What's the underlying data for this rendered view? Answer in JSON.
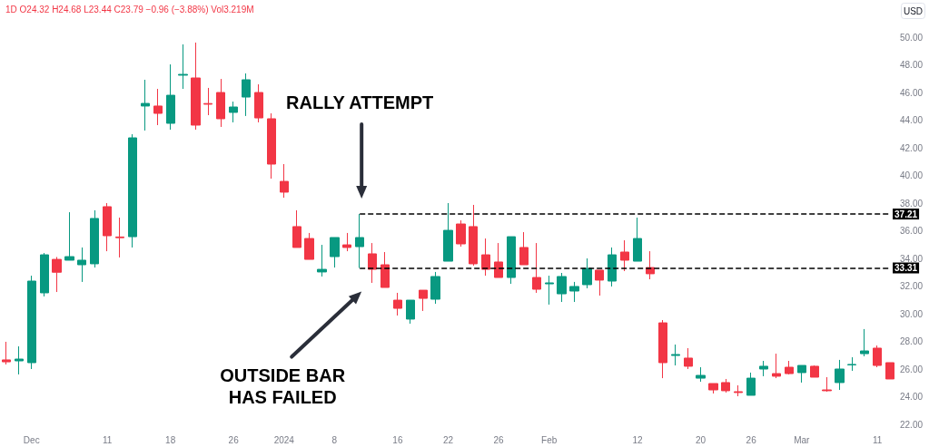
{
  "chart_data": {
    "type": "candlestick",
    "annotations": [
      "1D O24.32 H24.68 L23.44 C23.79 −0.96 (−3.88%) Vol3.219M",
      "RALLY ATTEMPT",
      "OUTSIDE BAR\nHAS FAILED"
    ],
    "ylabel": "USD",
    "categories": [
      null,
      null,
      "Dec",
      null,
      null,
      null,
      null,
      null,
      "11",
      null,
      null,
      null,
      null,
      "18",
      null,
      null,
      null,
      null,
      "26",
      null,
      null,
      null,
      "2024",
      null,
      null,
      null,
      "8",
      null,
      null,
      null,
      null,
      "16",
      null,
      null,
      null,
      "22",
      null,
      null,
      null,
      "26",
      null,
      null,
      null,
      "Feb",
      null,
      null,
      null,
      null,
      null,
      null,
      "12",
      null,
      null,
      null,
      null,
      "20",
      null,
      null,
      null,
      "26",
      null,
      null,
      null,
      "Mar",
      null,
      null,
      null,
      null,
      null,
      "11",
      null
    ],
    "ohlc": [
      [
        26.66,
        27.97,
        26.33,
        26.52
      ],
      [
        26.59,
        27.64,
        25.61,
        26.72
      ],
      [
        26.46,
        32.75,
        26.0,
        32.36
      ],
      [
        31.51,
        34.39,
        31.25,
        34.26
      ],
      [
        33.93,
        34.1,
        31.57,
        33.0
      ],
      [
        33.87,
        37.34,
        33.87,
        34.13
      ],
      [
        33.54,
        34.79,
        32.3,
        33.87
      ],
      [
        33.61,
        37.48,
        33.34,
        36.89
      ],
      [
        37.74,
        38.0,
        34.52,
        35.64
      ],
      [
        35.55,
        36.95,
        34.07,
        35.5
      ],
      [
        35.57,
        42.98,
        34.79,
        42.72
      ],
      [
        45.02,
        46.92,
        43.25,
        45.21
      ],
      [
        45.02,
        46.26,
        43.64,
        44.49
      ],
      [
        43.77,
        48.03,
        43.31,
        45.8
      ],
      [
        47.25,
        49.48,
        46.26,
        47.31
      ],
      [
        47.05,
        49.61,
        43.31,
        43.64
      ],
      [
        45.2,
        46.33,
        44.36,
        45.15
      ],
      [
        46.0,
        46.98,
        43.51,
        44.1
      ],
      [
        44.56,
        45.34,
        43.84,
        44.95
      ],
      [
        45.67,
        47.38,
        44.3,
        46.92
      ],
      [
        46.0,
        46.59,
        43.84,
        44.16
      ],
      [
        44.1,
        44.49,
        39.77,
        40.82
      ],
      [
        39.57,
        40.82,
        38.39,
        38.79
      ],
      [
        36.3,
        37.48,
        34.79,
        34.79
      ],
      [
        35.44,
        35.84,
        33.93,
        33.93
      ],
      [
        33.02,
        34.98,
        32.69,
        33.21
      ],
      [
        34.13,
        35.51,
        33.34,
        35.51
      ],
      [
        34.98,
        35.84,
        34.52,
        34.79
      ],
      [
        34.85,
        37.21,
        33.31,
        35.51
      ],
      [
        34.33,
        35.11,
        32.23,
        33.21
      ],
      [
        33.54,
        34.46,
        31.9,
        31.9
      ],
      [
        30.98,
        31.51,
        29.87,
        30.39
      ],
      [
        29.61,
        30.98,
        29.28,
        30.98
      ],
      [
        31.7,
        31.7,
        30.2,
        31.11
      ],
      [
        31.05,
        33.02,
        30.72,
        32.69
      ],
      [
        33.8,
        38.0,
        33.8,
        36.03
      ],
      [
        36.49,
        36.75,
        34.85,
        35.05
      ],
      [
        36.3,
        37.87,
        33.48,
        33.61
      ],
      [
        34.26,
        35.44,
        32.75,
        33.21
      ],
      [
        33.74,
        35.11,
        32.62,
        32.62
      ],
      [
        32.62,
        35.57,
        32.16,
        35.57
      ],
      [
        34.79,
        35.9,
        33.54,
        33.54
      ],
      [
        32.62,
        35.11,
        31.51,
        31.77
      ],
      [
        32.16,
        32.75,
        30.66,
        32.23
      ],
      [
        31.44,
        32.95,
        30.85,
        32.69
      ],
      [
        31.64,
        32.3,
        30.85,
        31.97
      ],
      [
        32.1,
        34.0,
        31.84,
        33.28
      ],
      [
        33.15,
        33.15,
        31.31,
        32.43
      ],
      [
        32.36,
        34.79,
        31.97,
        34.26
      ],
      [
        34.46,
        35.31,
        33.08,
        33.87
      ],
      [
        33.8,
        36.95,
        33.8,
        35.44
      ],
      [
        33.34,
        34.52,
        32.49,
        32.89
      ],
      [
        29.34,
        29.54,
        25.34,
        26.46
      ],
      [
        26.98,
        27.77,
        26.26,
        27.05
      ],
      [
        26.79,
        27.51,
        26.0,
        26.2
      ],
      [
        25.34,
        26.13,
        25.08,
        25.54
      ],
      [
        24.95,
        24.95,
        24.23,
        24.49
      ],
      [
        25.02,
        25.28,
        24.3,
        24.43
      ],
      [
        24.36,
        24.82,
        24.03,
        24.3
      ],
      [
        24.1,
        25.74,
        24.1,
        25.34
      ],
      [
        26.0,
        26.59,
        25.48,
        26.2
      ],
      [
        25.67,
        27.11,
        25.34,
        25.48
      ],
      [
        26.13,
        26.59,
        25.61,
        25.67
      ],
      [
        25.74,
        26.26,
        25.02,
        26.26
      ],
      [
        26.2,
        26.26,
        25.41,
        25.41
      ],
      [
        24.49,
        25.41,
        24.36,
        24.43
      ],
      [
        25.02,
        26.66,
        24.49,
        26.0
      ],
      [
        26.3,
        26.85,
        25.87,
        26.33
      ],
      [
        27.11,
        28.89,
        26.92,
        27.31
      ],
      [
        27.51,
        27.7,
        26.13,
        26.26
      ],
      [
        26.46,
        26.46,
        25.28,
        25.28
      ]
    ],
    "colors": [
      "#f23645",
      "#089981",
      "#089981",
      "#089981",
      "#f23645",
      "#089981",
      "#089981",
      "#089981",
      "#f23645",
      "#f23645",
      "#089981",
      "#089981",
      "#f23645",
      "#089981",
      "#089981",
      "#f23645",
      "#f23645",
      "#f23645",
      "#089981",
      "#089981",
      "#f23645",
      "#f23645",
      "#f23645",
      "#f23645",
      "#f23645",
      "#089981",
      "#089981",
      "#f23645",
      "#089981",
      "#f23645",
      "#f23645",
      "#f23645",
      "#089981",
      "#f23645",
      "#089981",
      "#089981",
      "#f23645",
      "#f23645",
      "#f23645",
      "#f23645",
      "#089981",
      "#f23645",
      "#f23645",
      "#089981",
      "#089981",
      "#089981",
      "#089981",
      "#f23645",
      "#089981",
      "#f23645",
      "#089981",
      "#f23645",
      "#f23645",
      "#089981",
      "#f23645",
      "#089981",
      "#f23645",
      "#f23645",
      "#f23645",
      "#089981",
      "#089981",
      "#f23645",
      "#f23645",
      "#089981",
      "#f23645",
      "#f23645",
      "#089981",
      "#089981",
      "#089981",
      "#f23645",
      "#f23645"
    ],
    "ylim": [
      22,
      50
    ],
    "yticks": [
      {
        "value": 22,
        "label": "22.00"
      },
      {
        "value": 24,
        "label": "24.00"
      },
      {
        "value": 26,
        "label": "26.00"
      },
      {
        "value": 28,
        "label": "28.00"
      },
      {
        "value": 30,
        "label": "30.00"
      },
      {
        "value": 32,
        "label": "32.00"
      },
      {
        "value": 34,
        "label": "34.00"
      },
      {
        "value": 36,
        "label": "36.00"
      },
      {
        "value": 38,
        "label": "38.00"
      },
      {
        "value": 40,
        "label": "40.00"
      },
      {
        "value": 42,
        "label": "42.00"
      },
      {
        "value": 44,
        "label": "44.00"
      },
      {
        "value": 46,
        "label": "46.00"
      },
      {
        "value": 48,
        "label": "48.00"
      },
      {
        "value": 50,
        "label": "50.00"
      }
    ],
    "ref_lines": [
      {
        "axis": "y",
        "value": 37.21,
        "label": "37.21",
        "color": "#000000",
        "line_style": "dashed"
      },
      {
        "axis": "y",
        "value": 33.31,
        "label": "33.31",
        "color": "#000000",
        "line_style": "dashed"
      }
    ],
    "grid": false
  }
}
